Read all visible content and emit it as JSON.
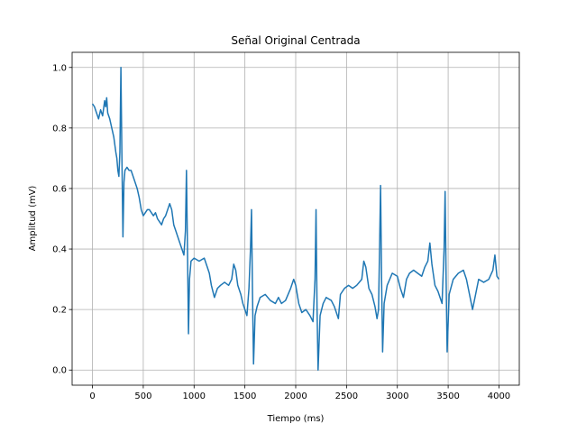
{
  "chart_data": {
    "type": "line",
    "title": "Señal Original Centrada",
    "xlabel": "Tiempo (ms)",
    "ylabel": "Amplitud (mV)",
    "xlim": [
      -200,
      4200
    ],
    "ylim": [
      -0.05,
      1.05
    ],
    "xticks": [
      0,
      500,
      1000,
      1500,
      2000,
      2500,
      3000,
      3500,
      4000
    ],
    "yticks": [
      {
        "value": 0,
        "label": "0.0"
      },
      0.2,
      0.4,
      0.6,
      0.8,
      {
        "value": 1,
        "label": "1.0"
      }
    ],
    "grid": true,
    "series": [
      {
        "color": "#1f77b4",
        "x": [
          0,
          20,
          40,
          60,
          80,
          100,
          120,
          130,
          140,
          150,
          170,
          190,
          210,
          230,
          240,
          250,
          260,
          270,
          280,
          290,
          300,
          310,
          320,
          340,
          360,
          380,
          400,
          420,
          440,
          460,
          480,
          500,
          520,
          540,
          560,
          580,
          600,
          620,
          640,
          660,
          680,
          700,
          720,
          740,
          760,
          780,
          800,
          820,
          840,
          860,
          880,
          900,
          915,
          925,
          935,
          945,
          955,
          970,
          1000,
          1050,
          1100,
          1130,
          1150,
          1170,
          1200,
          1230,
          1260,
          1300,
          1340,
          1370,
          1390,
          1410,
          1430,
          1460,
          1480,
          1500,
          1520,
          1540,
          1555,
          1565,
          1575,
          1585,
          1600,
          1620,
          1650,
          1700,
          1750,
          1800,
          1830,
          1860,
          1900,
          1950,
          1980,
          2000,
          2030,
          2060,
          2100,
          2140,
          2170,
          2190,
          2200,
          2210,
          2220,
          2240,
          2270,
          2300,
          2350,
          2380,
          2400,
          2420,
          2440,
          2480,
          2520,
          2560,
          2600,
          2650,
          2670,
          2690,
          2720,
          2750,
          2780,
          2800,
          2815,
          2825,
          2835,
          2845,
          2855,
          2870,
          2900,
          2950,
          3000,
          3030,
          3060,
          3090,
          3120,
          3160,
          3200,
          3240,
          3270,
          3300,
          3320,
          3340,
          3370,
          3400,
          3420,
          3440,
          3460,
          3470,
          3480,
          3490,
          3510,
          3550,
          3600,
          3650,
          3680,
          3710,
          3740,
          3770,
          3800,
          3850,
          3900,
          3940,
          3960,
          3980,
          4000
        ],
        "values": [
          0.88,
          0.87,
          0.85,
          0.83,
          0.86,
          0.84,
          0.89,
          0.87,
          0.9,
          0.85,
          0.83,
          0.8,
          0.77,
          0.72,
          0.7,
          0.66,
          0.64,
          0.72,
          1.0,
          0.7,
          0.44,
          0.62,
          0.66,
          0.67,
          0.66,
          0.66,
          0.64,
          0.62,
          0.6,
          0.57,
          0.53,
          0.51,
          0.52,
          0.53,
          0.53,
          0.52,
          0.51,
          0.52,
          0.5,
          0.49,
          0.48,
          0.5,
          0.51,
          0.53,
          0.55,
          0.53,
          0.48,
          0.46,
          0.44,
          0.42,
          0.4,
          0.38,
          0.46,
          0.66,
          0.4,
          0.12,
          0.3,
          0.36,
          0.37,
          0.36,
          0.37,
          0.34,
          0.32,
          0.28,
          0.24,
          0.27,
          0.28,
          0.29,
          0.28,
          0.3,
          0.35,
          0.33,
          0.28,
          0.25,
          0.22,
          0.2,
          0.18,
          0.27,
          0.4,
          0.53,
          0.25,
          0.02,
          0.18,
          0.21,
          0.24,
          0.25,
          0.23,
          0.22,
          0.24,
          0.22,
          0.23,
          0.27,
          0.3,
          0.28,
          0.22,
          0.19,
          0.2,
          0.18,
          0.16,
          0.3,
          0.53,
          0.2,
          0.0,
          0.18,
          0.22,
          0.24,
          0.23,
          0.21,
          0.19,
          0.17,
          0.25,
          0.27,
          0.28,
          0.27,
          0.28,
          0.3,
          0.36,
          0.34,
          0.27,
          0.25,
          0.21,
          0.17,
          0.2,
          0.4,
          0.61,
          0.3,
          0.06,
          0.22,
          0.28,
          0.32,
          0.31,
          0.27,
          0.24,
          0.3,
          0.32,
          0.33,
          0.32,
          0.31,
          0.34,
          0.36,
          0.42,
          0.35,
          0.28,
          0.26,
          0.24,
          0.22,
          0.4,
          0.59,
          0.3,
          0.06,
          0.25,
          0.3,
          0.32,
          0.33,
          0.3,
          0.25,
          0.2,
          0.25,
          0.3,
          0.29,
          0.3,
          0.33,
          0.38,
          0.31,
          0.3
        ]
      }
    ]
  }
}
